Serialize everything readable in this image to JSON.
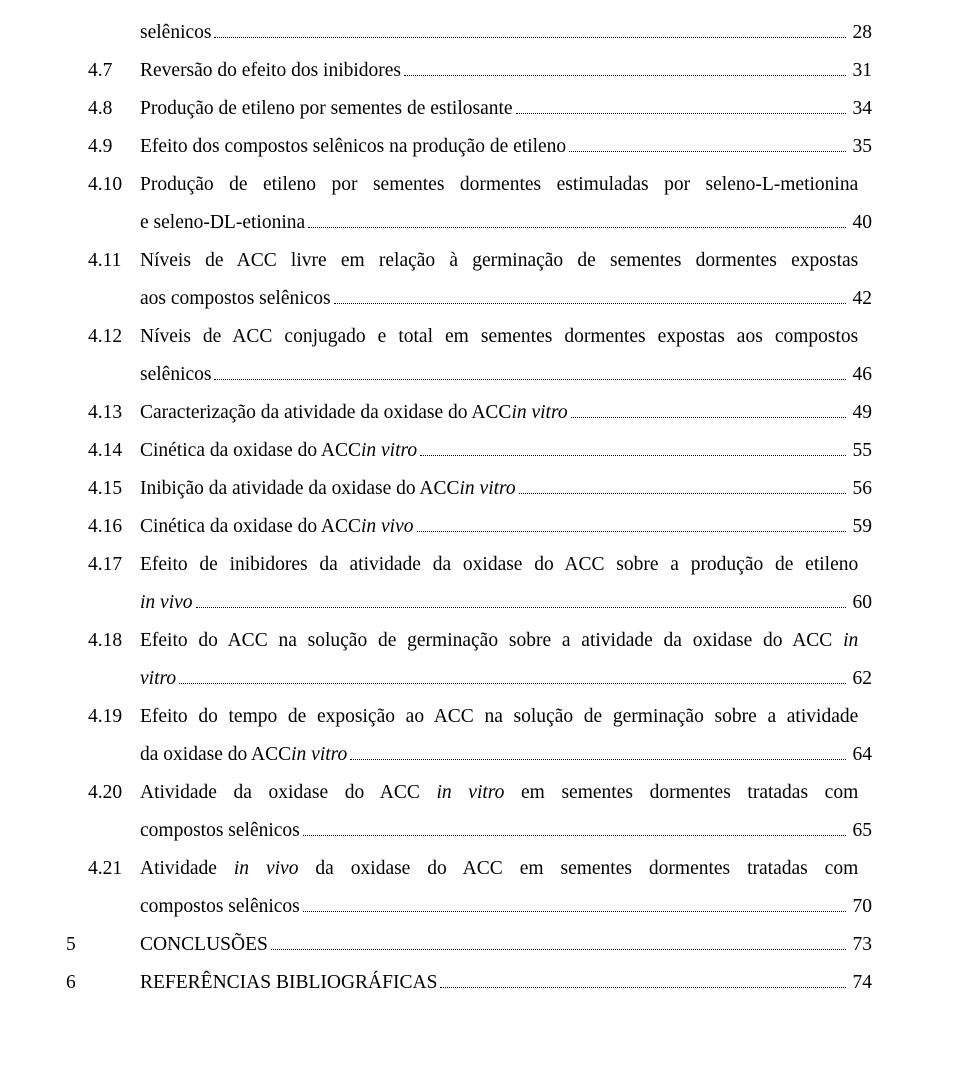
{
  "toc": [
    {
      "chap": "",
      "num": "",
      "text": "selênicos",
      "page": "28",
      "multi": false
    },
    {
      "chap": "",
      "num": "4.7",
      "text": "Reversão do efeito dos inibidores",
      "page": "31",
      "multi": false
    },
    {
      "chap": "",
      "num": "4.8",
      "text": "Produção de etileno por sementes de estilosante",
      "page": "34",
      "multi": false
    },
    {
      "chap": "",
      "num": "4.9",
      "text": "Efeito dos compostos selênicos na produção de etileno",
      "page": "35",
      "multi": false
    },
    {
      "chap": "",
      "num": "4.10",
      "line1": "Produção de etileno por sementes dormentes estimuladas por seleno-L-metionina",
      "line2": "e seleno-DL-etionina",
      "page": "40",
      "multi": true
    },
    {
      "chap": "",
      "num": "4.11",
      "line1": "Níveis de ACC livre em relação à germinação de sementes dormentes expostas",
      "line2": "aos compostos selênicos",
      "page": "42",
      "multi": true
    },
    {
      "chap": "",
      "num": "4.12",
      "line1": "Níveis de ACC conjugado e total em sementes dormentes expostas aos compostos",
      "line2": "selênicos",
      "page": "46",
      "multi": true
    },
    {
      "chap": "",
      "num": "4.13",
      "text_pre": "Caracterização da atividade da oxidase do ACC ",
      "text_it": "in vitro",
      "text_post": "",
      "page": "49",
      "multi": false,
      "hasItalic": true
    },
    {
      "chap": "",
      "num": "4.14",
      "text_pre": "Cinética da oxidase do ACC ",
      "text_it": "in vitro",
      "text_post": "",
      "page": "55",
      "multi": false,
      "hasItalic": true
    },
    {
      "chap": "",
      "num": "4.15",
      "text_pre": "Inibição da atividade da oxidase do ACC ",
      "text_it": "in vitro",
      "text_post": "",
      "page": "56",
      "multi": false,
      "hasItalic": true
    },
    {
      "chap": "",
      "num": "4.16",
      "text_pre": "Cinética da oxidase do ACC ",
      "text_it": "in vivo",
      "text_post": "",
      "page": "59",
      "multi": false,
      "hasItalic": true
    },
    {
      "chap": "",
      "num": "4.17",
      "line1": "Efeito de inibidores da atividade da oxidase do ACC sobre a produção de etileno",
      "line2_it": "in vivo",
      "page": "60",
      "multi": true,
      "line2Italic": true
    },
    {
      "chap": "",
      "num": "4.18",
      "line1_pre": "Efeito do ACC na solução de germinação sobre a atividade da oxidase do ACC ",
      "line1_it": "in",
      "line2_it": "vitro",
      "page": "62",
      "multi": true,
      "line1HasItalic": true,
      "line2Italic": true
    },
    {
      "chap": "",
      "num": "4.19",
      "line1": "Efeito do tempo de exposição ao ACC na solução de germinação sobre a atividade",
      "line2_pre": "da oxidase do ACC ",
      "line2_it": "in vitro",
      "page": "64",
      "multi": true,
      "line2HasItalic": true
    },
    {
      "chap": "",
      "num": "4.20",
      "line1_pre": "Atividade da oxidase do ACC ",
      "line1_it": "in vitro",
      "line1_post": " em sementes dormentes tratadas com",
      "line2": "compostos selênicos",
      "page": "65",
      "multi": true,
      "line1HasItalic": true
    },
    {
      "chap": "",
      "num": "4.21",
      "line1_pre": "Atividade ",
      "line1_it": "in vivo",
      "line1_post": " da oxidase do ACC em sementes dormentes tratadas com",
      "line2": "compostos selênicos",
      "page": "70",
      "multi": true,
      "line1HasItalic": true
    },
    {
      "chap": "5",
      "num": "",
      "text": "CONCLUSÕES",
      "page": "73",
      "multi": false
    },
    {
      "chap": "6",
      "num": "",
      "text": "REFERÊNCIAS BIBLIOGRÁFICAS",
      "page": "74",
      "multi": false
    }
  ]
}
